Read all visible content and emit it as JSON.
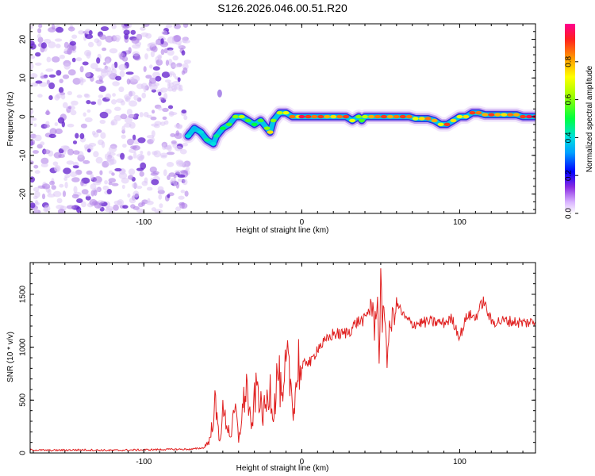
{
  "figure_title": "S126.2026.046.00.51.R20",
  "chart_data": [
    {
      "type": "heatmap",
      "xlabel": "Height of straight line (km)",
      "ylabel": "Frequency (Hz)",
      "xlim": [
        -172,
        148
      ],
      "ylim": [
        -25,
        24
      ],
      "x_ticks": [
        "-100",
        "0",
        "100"
      ],
      "x_tick_values": [
        -100,
        0,
        100
      ],
      "y_ticks": [
        "-20",
        "-10",
        "0",
        "10",
        "20"
      ],
      "y_tick_values": [
        -20,
        -10,
        0,
        10,
        20
      ],
      "noise_region_x": [
        -172,
        -72
      ],
      "ridge": {
        "x": [
          -72,
          -68,
          -64,
          -60,
          -56,
          -54,
          -50,
          -46,
          -42,
          -38,
          -34,
          -30,
          -26,
          -22,
          -20,
          -18,
          -14,
          -10,
          -6,
          -2,
          0,
          4,
          8,
          12,
          16,
          20,
          24,
          28,
          32,
          36,
          38,
          40,
          44,
          48,
          52,
          56,
          60,
          64,
          68,
          72,
          76,
          80,
          84,
          88,
          92,
          96,
          100,
          104,
          108,
          112,
          116,
          120,
          124,
          128,
          132,
          136,
          140,
          144,
          148
        ],
        "freq": [
          -5,
          -3,
          -4,
          -6,
          -7,
          -5,
          -3,
          -2,
          0,
          0,
          -1,
          -2,
          -1,
          -3,
          -4,
          -1,
          1,
          1,
          0,
          0,
          0,
          0,
          0,
          0,
          0,
          0,
          0,
          0,
          -1,
          0,
          -1,
          0,
          0,
          0,
          0,
          0,
          0,
          0,
          0,
          -0.5,
          -0.5,
          -0.5,
          -1,
          -2,
          -2,
          -1,
          0,
          0,
          1,
          1,
          0.5,
          0.5,
          0.5,
          0.5,
          0.5,
          0.5,
          0,
          0,
          0
        ],
        "amplitude": [
          0.4,
          0.35,
          0.4,
          0.45,
          0.4,
          0.45,
          0.5,
          0.55,
          0.6,
          0.65,
          0.55,
          0.5,
          0.55,
          0.6,
          0.75,
          0.6,
          0.65,
          0.7,
          0.85,
          0.75,
          0.95,
          0.9,
          0.85,
          0.9,
          0.8,
          0.75,
          0.85,
          0.9,
          0.7,
          0.6,
          0.55,
          0.65,
          0.8,
          0.85,
          0.9,
          0.8,
          0.85,
          0.9,
          0.85,
          0.7,
          0.75,
          0.85,
          0.8,
          0.7,
          0.9,
          0.75,
          0.7,
          0.75,
          0.9,
          0.85,
          0.8,
          0.9,
          0.8,
          0.75,
          0.85,
          0.8,
          0.9,
          0.95,
          0.95
        ]
      },
      "colorbar": {
        "label": "Normalized spectral amplitude",
        "range": [
          0,
          1
        ],
        "ticks": [
          "0.0",
          "0.2",
          "0.4",
          "0.6",
          "0.8"
        ],
        "tick_values": [
          0,
          0.2,
          0.4,
          0.6,
          0.8
        ]
      }
    },
    {
      "type": "line",
      "xlabel": "Height of straight line (km)",
      "ylabel": "SNR (10 * v/v)",
      "xlim": [
        -172,
        148
      ],
      "ylim": [
        0,
        1800
      ],
      "x_ticks": [
        "-100",
        "0",
        "100"
      ],
      "x_tick_values": [
        -100,
        0,
        100
      ],
      "y_ticks": [
        "0",
        "500",
        "1000",
        "1500"
      ],
      "y_tick_values": [
        0,
        500,
        1000,
        1500
      ],
      "line_color": "#e02020",
      "series": [
        {
          "name": "SNR",
          "x": [
            -172,
            -160,
            -140,
            -120,
            -100,
            -80,
            -70,
            -62,
            -58,
            -55,
            -52,
            -50,
            -48,
            -45,
            -42,
            -40,
            -38,
            -35,
            -32,
            -30,
            -28,
            -25,
            -22,
            -20,
            -18,
            -15,
            -12,
            -10,
            -8,
            -5,
            -2,
            0,
            3,
            6,
            10,
            15,
            20,
            25,
            30,
            35,
            40,
            44,
            46,
            48,
            49,
            50,
            51,
            52,
            54,
            56,
            60,
            65,
            70,
            80,
            90,
            95,
            100,
            105,
            110,
            115,
            120,
            130,
            140,
            148
          ],
          "y": [
            30,
            25,
            30,
            25,
            30,
            35,
            35,
            50,
            130,
            460,
            120,
            380,
            300,
            160,
            420,
            120,
            350,
            650,
            200,
            500,
            640,
            350,
            480,
            640,
            360,
            800,
            400,
            850,
            750,
            420,
            870,
            780,
            880,
            850,
            1000,
            1050,
            1130,
            1120,
            1150,
            1240,
            1260,
            1420,
            1180,
            1530,
            760,
            1800,
            1050,
            1460,
            930,
            1180,
            1420,
            1280,
            1220,
            1240,
            1230,
            1270,
            1100,
            1310,
            1280,
            1440,
            1240,
            1250,
            1230,
            1240
          ]
        }
      ]
    }
  ]
}
